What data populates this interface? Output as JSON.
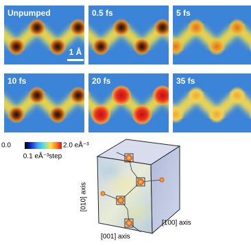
{
  "panels": [
    {
      "label": "Unpumped"
    },
    {
      "label": "0.5 fs"
    },
    {
      "label": "5 fs"
    },
    {
      "label": "10 fs"
    },
    {
      "label": "20 fs"
    },
    {
      "label": "35 fs"
    }
  ],
  "scale_bar": "1 Å",
  "colorbar": {
    "min_label": "0.0",
    "max_label": "2.0 eÅ⁻³",
    "step_label": "0.1 eÅ⁻³step"
  },
  "axes": {
    "vertical": "[010] axis",
    "right": "[100] axis",
    "bottom": "[001] axis"
  }
}
